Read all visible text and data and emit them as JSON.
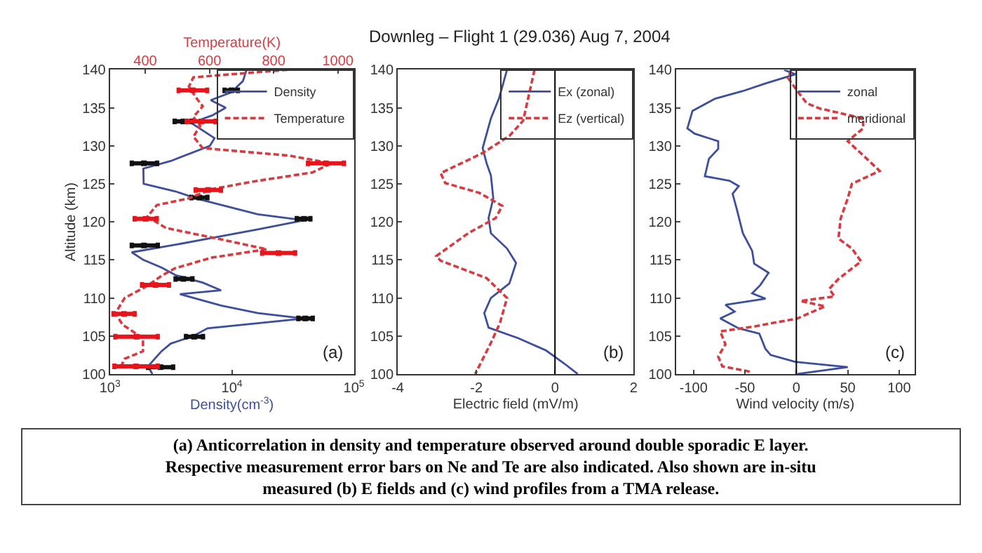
{
  "chart_data": [
    {
      "type": "line",
      "xlabel": "Density(cm$^{-3}$)",
      "x2label": "Temperature(K)",
      "ylabel": "Altitude (km)",
      "log": "x",
      "xlim": [
        1000,
        100000
      ],
      "xticks": [
        {
          "value": 1000,
          "label": "10$^{3}$"
        },
        {
          "value": 10000,
          "label": "10$^{4}$"
        },
        {
          "value": 100000,
          "label": "10$^{5}$"
        }
      ],
      "x2lim": [
        290,
        1050
      ],
      "x2ticks": [
        400,
        600,
        800,
        1000
      ],
      "ylim": [
        100,
        140
      ],
      "yticks": [
        100,
        105,
        110,
        115,
        120,
        125,
        130,
        135,
        140
      ],
      "grid": false,
      "legend": "top right",
      "annotations": [
        "(a)",
        "(a) Anticorrelation in density and temperature observed around double sporadic E layer. Respective measurement error bars on Ne and Te are also indicated. Also shown are in-situ measured (b) E fields and (c) wind profiles from a TMA release."
      ],
      "series": [
        {
          "name": "Density",
          "type": "line",
          "line_style": "solid",
          "color": "#3d4f9c",
          "x": [
            13200,
            12300,
            9800,
            6700,
            8900,
            6900,
            4650,
            7200,
            6600,
            3150,
            1880,
            1890,
            3450,
            5300,
            16300,
            39000,
            16300,
            3450,
            1510,
            1880,
            2650,
            3450,
            5800,
            8150,
            3750,
            8150,
            16300,
            39000,
            6300,
            4850,
            3150,
            2650,
            2050,
            2230
          ],
          "values": [
            140,
            138.5,
            137,
            136,
            135,
            134,
            133,
            131,
            130,
            128,
            127,
            125,
            124,
            123,
            121,
            120.2,
            119,
            117,
            116,
            115,
            114,
            113,
            112,
            111,
            110.5,
            109,
            108,
            107.3,
            106,
            105,
            104,
            103,
            101,
            100
          ]
        },
        {
          "name": "Temperature",
          "type": "line",
          "axis": "x2",
          "line_style": "dashed",
          "color": "#d83a3f",
          "x": [
            843,
            550,
            536,
            557,
            579,
            550,
            571,
            550,
            579,
            850,
            979,
            921,
            736,
            607,
            536,
            436,
            407,
            464,
            636,
            779,
            607,
            493,
            450,
            407,
            336,
            307,
            329,
            393,
            393,
            336,
            321
          ],
          "values": [
            140,
            139,
            137.8,
            136.4,
            135.2,
            133.8,
            132.6,
            131.2,
            129.7,
            128.7,
            127.7,
            126.5,
            125.3,
            124.3,
            123.1,
            122.2,
            120.7,
            119.2,
            117.7,
            116.4,
            115.3,
            113.9,
            112.9,
            111.6,
            110,
            108,
            106.5,
            104.7,
            103,
            102,
            100.7
          ]
        },
        {
          "type": "scatter",
          "marker": "square",
          "color": "#111111",
          "x": [
            9900,
            4000,
            1900,
            5400,
            39000,
            1900,
            4000,
            40000,
            4900,
            2600
          ],
          "values": [
            137.3,
            133.2,
            127.7,
            123.2,
            120.4,
            116.9,
            112.5,
            107.3,
            104.9,
            100.9
          ],
          "xerrors": [
            [
              8700,
              11200
            ],
            [
              3390,
              4650
            ],
            [
              1510,
              2440
            ],
            [
              4650,
              6300
            ],
            [
              34000,
              44000
            ],
            [
              1510,
              2470
            ],
            [
              3450,
              4750
            ],
            [
              35000,
              46000
            ],
            [
              4200,
              5800
            ],
            [
              2050,
              3300
            ]
          ]
        },
        {
          "type": "scatter",
          "axis": "x2",
          "marker": "square",
          "color": "#e8141c",
          "x": [
            548,
            574,
            963,
            596,
            401,
            815,
            432,
            334,
            373,
            371
          ],
          "values": [
            137.3,
            133.2,
            127.7,
            124.2,
            120.4,
            115.9,
            111.7,
            107.9,
            104.9,
            101
          ],
          "xerrors": [
            [
              504,
              593
            ],
            [
              529,
              619
            ],
            [
              907,
              1019
            ],
            [
              557,
              636
            ],
            [
              367,
              436
            ],
            [
              764,
              867
            ],
            [
              390,
              474
            ],
            [
              301,
              367
            ],
            [
              307,
              439
            ],
            [
              304,
              439
            ]
          ]
        }
      ]
    },
    {
      "type": "line",
      "title": "Downleg – Flight 1 (29.036) Aug 7, 2004",
      "xlabel": "Electric field (mV/m)",
      "xlim": [
        -4,
        2
      ],
      "xticks": [
        -4,
        -2,
        0,
        2
      ],
      "ylim": [
        100,
        140
      ],
      "yticks": [
        100,
        105,
        110,
        115,
        120,
        125,
        130,
        135,
        140
      ],
      "grid": false,
      "legend": "top right",
      "annotations": [
        "(b)"
      ],
      "ref_lines": [
        {
          "axis": "x",
          "value": 0,
          "color": "#000000"
        }
      ],
      "series": [
        {
          "name": "Ex (zonal)",
          "line_style": "solid",
          "color": "#3d4f9c",
          "x": [
            -1.22,
            -1.42,
            -1.63,
            -1.84,
            -1.74,
            -1.63,
            -1.57,
            -1.69,
            -1.63,
            -1.22,
            -0.99,
            -1.16,
            -1.63,
            -1.8,
            -1.69,
            -0.93,
            -0.23,
            0.23,
            0.58
          ],
          "values": [
            140,
            136.3,
            133.6,
            129.7,
            127.7,
            126.1,
            123.1,
            120.5,
            118.5,
            116.5,
            114.6,
            111.9,
            110,
            108,
            106.1,
            104.7,
            103.1,
            101.4,
            100
          ]
        },
        {
          "name": "Ez (vertical)",
          "line_style": "dashed",
          "color": "#d83a3f",
          "x": [
            -0.52,
            -0.81,
            -1.16,
            -1.86,
            -2.91,
            -2.79,
            -1.92,
            -1.34,
            -1.51,
            -2.21,
            -3.02,
            -2.91,
            -1.74,
            -1.22,
            -1.4,
            -1.63,
            -2.03
          ],
          "values": [
            140,
            133.3,
            131.3,
            129,
            126.4,
            125.1,
            123.8,
            122.1,
            120.5,
            118.5,
            115.5,
            114.9,
            112.6,
            110,
            106.7,
            104.1,
            100
          ]
        }
      ]
    },
    {
      "type": "line",
      "xlabel": "Wind velocity (m/s)",
      "xlim": [
        -117,
        115
      ],
      "xticks": [
        -100,
        -50,
        0,
        50,
        100
      ],
      "ylim": [
        100,
        140
      ],
      "yticks": [
        100,
        105,
        110,
        115,
        120,
        125,
        130,
        135,
        140
      ],
      "grid": false,
      "legend": "top right",
      "annotations": [
        "(c)"
      ],
      "ref_lines": [
        {
          "axis": "x",
          "value": 0,
          "color": "#000000"
        }
      ],
      "series": [
        {
          "name": "zonal",
          "line_style": "solid",
          "color": "#3d4f9c",
          "x": [
            -12,
            -1,
            -30,
            -52,
            -79,
            -101,
            -106,
            -99,
            -76,
            -76,
            -85,
            -89,
            -65,
            -56,
            -62,
            -58,
            -52,
            -43,
            -41,
            -27,
            -35,
            -43,
            -30,
            -69,
            -60,
            -74,
            -56,
            -36,
            -30,
            -25,
            -1,
            50,
            1
          ],
          "values": [
            140,
            139.4,
            138.2,
            137.2,
            136.2,
            134.6,
            132.3,
            131.6,
            130.6,
            129.6,
            128.3,
            126,
            125.4,
            124.7,
            123.7,
            121.7,
            118.5,
            116.2,
            114.5,
            113.3,
            111.7,
            110.6,
            109.9,
            109.1,
            108.2,
            107.3,
            106,
            105.3,
            103.3,
            102.5,
            101.6,
            100.9,
            100
          ]
        },
        {
          "name": "meridional",
          "line_style": "dashed",
          "color": "#d83a3f",
          "x": [
            -5,
            -8,
            1,
            10,
            23,
            65,
            65,
            50,
            63,
            81,
            54,
            50,
            43,
            41,
            54,
            63,
            41,
            32,
            37,
            4,
            28,
            1,
            -43,
            -74,
            -69,
            -76,
            -72,
            -45
          ],
          "values": [
            140,
            138.9,
            137.2,
            135.6,
            134.9,
            133.6,
            132.3,
            130.6,
            129,
            126.7,
            125,
            123.1,
            120.4,
            117.8,
            116.5,
            114.8,
            112.5,
            111.2,
            110.2,
            109.6,
            108.9,
            107.3,
            106.2,
            105.6,
            103.9,
            102.3,
            101,
            100.3
          ]
        }
      ]
    }
  ]
}
